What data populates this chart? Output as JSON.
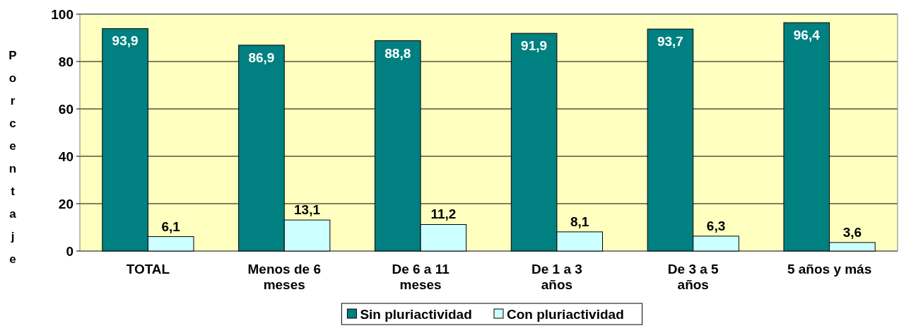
{
  "chart_data": {
    "type": "bar",
    "ylabel": "Porcentaje",
    "categories": [
      "TOTAL",
      "Menos de 6 meses",
      "De 6 a 11 meses",
      "De 1 a 3 años",
      "De 3 a 5 años",
      "5 años y más"
    ],
    "series": [
      {
        "name": "Sin pluriactividad",
        "color": "#008080",
        "values": [
          93.9,
          86.9,
          88.8,
          91.9,
          93.7,
          96.4
        ],
        "value_labels": [
          "93,9",
          "86,9",
          "88,8",
          "91,9",
          "93,7",
          "96,4"
        ]
      },
      {
        "name": "Con pluriactividad",
        "color": "#ccffff",
        "values": [
          6.1,
          13.1,
          11.2,
          8.1,
          6.3,
          3.6
        ],
        "value_labels": [
          "6,1",
          "13,1",
          "11,2",
          "8,1",
          "6,3",
          "3,6"
        ]
      }
    ],
    "ylim": [
      0,
      100
    ],
    "yticks": [
      0,
      20,
      40,
      60,
      80,
      100
    ],
    "grid": "y",
    "legend": "bottom"
  }
}
